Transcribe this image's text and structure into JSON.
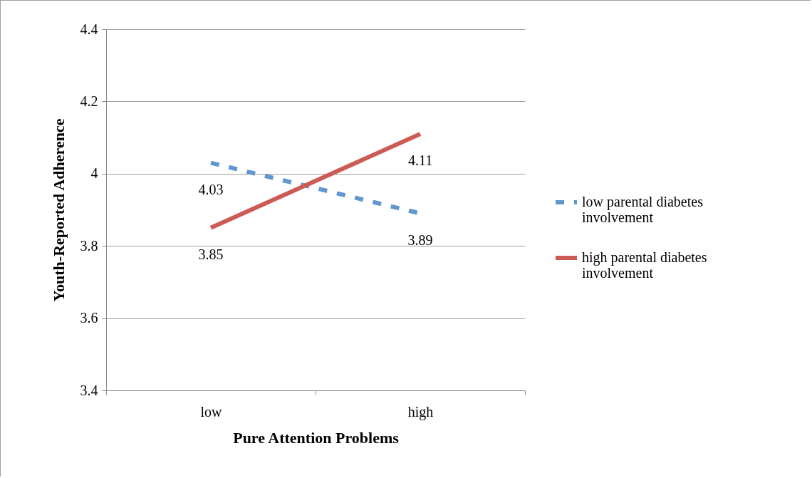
{
  "chart_data": {
    "type": "line",
    "xlabel": "Pure Attention Problems",
    "ylabel": "Youth-Reported Adherence",
    "categories": [
      "low",
      "high"
    ],
    "series": [
      {
        "name": "low parental diabetes involvement",
        "color": "#6197cf",
        "line_style": "dashed",
        "values": [
          4.03,
          3.89
        ]
      },
      {
        "name": "high parental diabetes involvement",
        "color": "#cd5b55",
        "line_style": "solid",
        "values": [
          3.85,
          4.11
        ]
      }
    ],
    "ylim": [
      3.4,
      4.4
    ],
    "yticks": [
      3.4,
      3.6,
      3.8,
      4,
      4.2,
      4.4
    ],
    "grid": "y",
    "legend": "right",
    "data_labels": true
  }
}
